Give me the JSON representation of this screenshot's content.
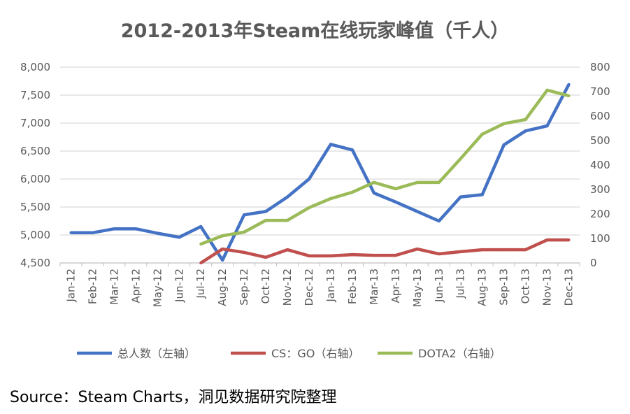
{
  "chart_data": {
    "type": "line",
    "title": "2012-2013年Steam在线玩家峰值（千人）",
    "categories": [
      "Jan-12",
      "Feb-12",
      "Mar-12",
      "Apr-12",
      "May-12",
      "Jun-12",
      "Jul-12",
      "Aug-12",
      "Sep-12",
      "Oct-12",
      "Nov-12",
      "Dec-12",
      "Jan-13",
      "Feb-13",
      "Mar-13",
      "Apr-13",
      "May-13",
      "Jun-13",
      "Jul-13",
      "Aug-13",
      "Sep-13",
      "Oct-13",
      "Nov-13",
      "Dec-13"
    ],
    "y_left": {
      "range": [
        4500,
        8000
      ],
      "ticks": [
        "4,500",
        "5,000",
        "5,500",
        "6,000",
        "6,500",
        "7,000",
        "7,500",
        "8,000"
      ]
    },
    "y_right": {
      "range": [
        0,
        800
      ],
      "ticks": [
        "0",
        "100",
        "200",
        "300",
        "400",
        "500",
        "600",
        "700",
        "800"
      ]
    },
    "grid": true,
    "legend_position": "bottom",
    "series": [
      {
        "name": "总人数（左轴）",
        "axis": "left",
        "color": "#4472C4",
        "values": [
          5040,
          5040,
          5110,
          5110,
          5030,
          4960,
          5150,
          4550,
          5360,
          5420,
          5680,
          6000,
          6620,
          6520,
          5750,
          5590,
          5420,
          5250,
          5680,
          5720,
          6610,
          6860,
          6950,
          7690
        ]
      },
      {
        "name": "CS：GO（右轴）",
        "axis": "right",
        "color": "#C0504D",
        "values": [
          null,
          null,
          null,
          null,
          null,
          null,
          0,
          57,
          43,
          23,
          54,
          29,
          29,
          34,
          31,
          31,
          57,
          37,
          46,
          54,
          54,
          54,
          94,
          94
        ]
      },
      {
        "name": "DOTA2（右轴）",
        "axis": "right",
        "color": "#9BBB59",
        "values": [
          null,
          null,
          null,
          null,
          null,
          null,
          77,
          111,
          126,
          174,
          174,
          226,
          263,
          289,
          329,
          303,
          329,
          329,
          426,
          526,
          569,
          586,
          706,
          683
        ]
      }
    ]
  },
  "source": "Source：Steam Charts，洞见数据研究院整理"
}
